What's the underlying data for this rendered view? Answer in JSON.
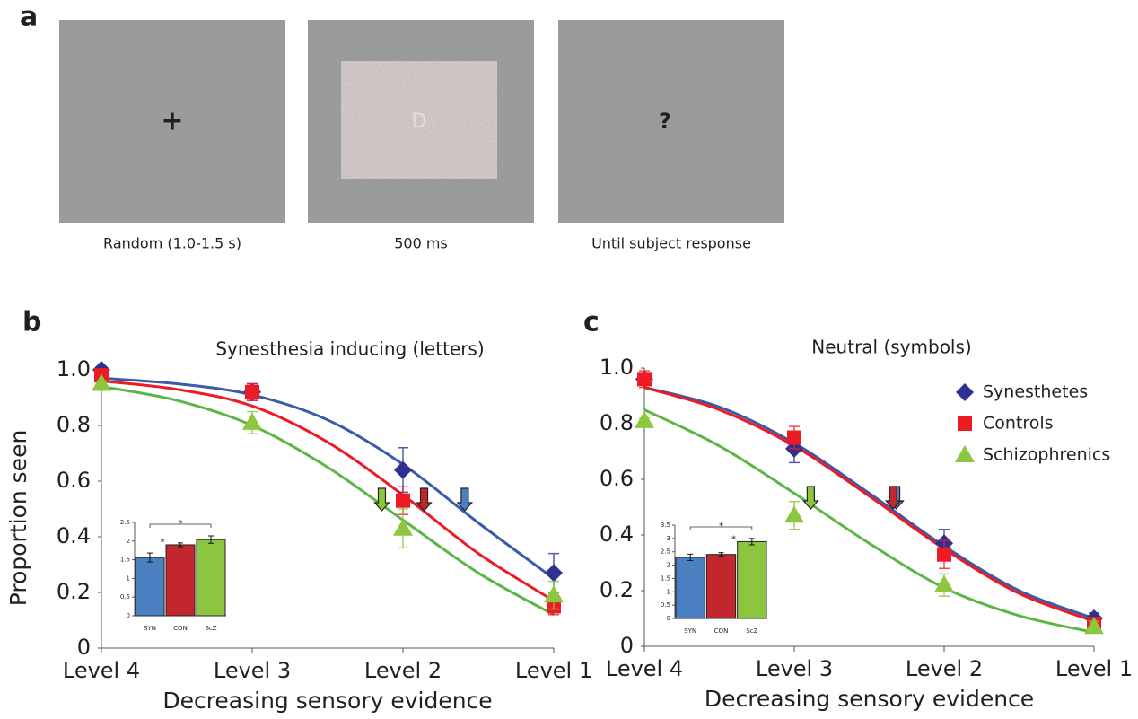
{
  "panel_a": {
    "label": "a",
    "frames": [
      {
        "symbol": "+",
        "caption": "Random (1.0-1.5 s)"
      },
      {
        "symbol": "D",
        "caption": "500 ms"
      },
      {
        "symbol": "?",
        "caption": "Until subject response"
      }
    ]
  },
  "chart_data": [
    {
      "type": "line",
      "panel": "b",
      "title": "Synesthesia inducing (letters)",
      "x_label": "Decreasing sensory evidence",
      "y_label": "Proportion seen",
      "categories": [
        "Level 4",
        "Level 3",
        "Level 2",
        "Level 1"
      ],
      "ylim": [
        0,
        1
      ],
      "yticks": [
        0,
        0.2,
        0.4,
        0.6,
        0.8,
        {
          "value": 1,
          "label": "1.0"
        }
      ],
      "series": [
        {
          "color": "#2e3192",
          "fit_color": "#3b5ba9",
          "marker": "diamond",
          "values": [
            1.0,
            0.92,
            0.64,
            0.27
          ],
          "errors": [
            0.01,
            0.03,
            0.08,
            0.07
          ],
          "fit_x": [
            0,
            0.5,
            1,
            1.5,
            2,
            2.5,
            3
          ],
          "fit_values": [
            0.97,
            0.95,
            0.91,
            0.82,
            0.66,
            0.45,
            0.25
          ],
          "threshold": 2.41
        },
        {
          "color": "#ed1c24",
          "fit_color": "#ed1c24",
          "marker": "square",
          "values": [
            0.98,
            0.92,
            0.53,
            0.15
          ],
          "errors": [
            0.01,
            0.03,
            0.05,
            0.03
          ],
          "fit_x": [
            0,
            0.5,
            1,
            1.5,
            2,
            2.5,
            3
          ],
          "fit_values": [
            0.96,
            0.93,
            0.87,
            0.74,
            0.55,
            0.34,
            0.17
          ],
          "threshold": 2.14
        },
        {
          "color": "#8dc63f",
          "fit_color": "#5cb645",
          "marker": "triangle",
          "values": [
            0.95,
            0.81,
            0.43,
            0.19
          ],
          "errors": [
            0.01,
            0.04,
            0.07,
            0.05
          ],
          "fit_x": [
            0,
            0.5,
            1,
            1.5,
            2,
            2.5,
            3
          ],
          "fit_values": [
            0.94,
            0.89,
            0.8,
            0.65,
            0.46,
            0.27,
            0.12
          ],
          "threshold": 1.86
        }
      ]
    },
    {
      "type": "bar",
      "categories": [
        "SYN",
        "CON",
        "ScZ"
      ],
      "values": [
        1.56,
        1.9,
        2.04
      ],
      "errors": [
        0.12,
        0.05,
        0.1
      ],
      "colors": [
        "#4a7fc1",
        "#c1272d",
        "#8cc63e"
      ],
      "ylim": [
        0,
        2.5
      ],
      "yticks": [
        0,
        0.5,
        1,
        1.5,
        2,
        2.5
      ],
      "significance": [
        {
          "label": "*",
          "bars": [
            0,
            2
          ]
        },
        {
          "label": "*",
          "bars": [
            1
          ]
        }
      ]
    },
    {
      "type": "line",
      "panel": "c",
      "title": "Neutral (symbols)",
      "x_label": "Decreasing sensory evidence",
      "categories": [
        "Level 4",
        "Level 3",
        "Level 2",
        "Level 1"
      ],
      "ylim": [
        0,
        1
      ],
      "yticks": [
        0,
        0.2,
        0.4,
        0.6,
        0.8,
        {
          "value": 1,
          "label": "1.0"
        }
      ],
      "legend": "upper right",
      "series": [
        {
          "name": "Synesthetes",
          "color": "#2e3192",
          "fit_color": "#3b5ba9",
          "marker": "diamond",
          "values": [
            0.96,
            0.71,
            0.37,
            0.1
          ],
          "errors": [
            0.02,
            0.05,
            0.05,
            0.02
          ],
          "fit_x": [
            0,
            0.5,
            1,
            1.5,
            2,
            2.5,
            3
          ],
          "fit_values": [
            0.93,
            0.86,
            0.73,
            0.55,
            0.36,
            0.2,
            0.1
          ],
          "threshold": 1.68
        },
        {
          "name": "Controls",
          "color": "#ed1c24",
          "fit_color": "#ed1c24",
          "marker": "square",
          "values": [
            0.96,
            0.75,
            0.33,
            0.08
          ],
          "errors": [
            0.03,
            0.04,
            0.05,
            0.02
          ],
          "fit_x": [
            0,
            0.5,
            1,
            1.5,
            2,
            2.5,
            3
          ],
          "fit_values": [
            0.93,
            0.85,
            0.72,
            0.54,
            0.35,
            0.19,
            0.09
          ],
          "threshold": 1.66
        },
        {
          "name": "Schizophrenics",
          "color": "#8dc63f",
          "fit_color": "#5cb645",
          "marker": "triangle",
          "values": [
            0.81,
            0.47,
            0.22,
            0.07
          ],
          "errors": [
            0.01,
            0.05,
            0.04,
            0.02
          ],
          "fit_x": [
            0,
            0.5,
            1,
            1.5,
            2,
            2.5,
            3
          ],
          "fit_values": [
            0.85,
            0.72,
            0.55,
            0.37,
            0.21,
            0.11,
            0.05
          ],
          "threshold": 1.11
        }
      ]
    },
    {
      "type": "bar",
      "categories": [
        "SYN",
        "CON",
        "ScZ"
      ],
      "values": [
        2.29,
        2.4,
        2.88
      ],
      "errors": [
        0.12,
        0.07,
        0.12
      ],
      "colors": [
        "#4a7fc1",
        "#c1272d",
        "#8cc63e"
      ],
      "ylim": [
        0,
        3.5
      ],
      "yticks": [
        0,
        0.5,
        1,
        1.5,
        2,
        2.5,
        3,
        3.5
      ],
      "significance": [
        {
          "label": "*",
          "bars": [
            0,
            2
          ]
        },
        {
          "label": "*",
          "bars": [
            2
          ]
        }
      ]
    }
  ]
}
